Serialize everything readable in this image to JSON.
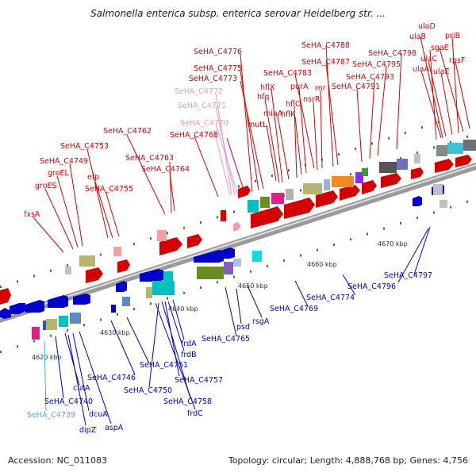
{
  "title": "Salmonella enterica subsp. enterica serovar Heidelberg str. ...",
  "accession": "Accession: NC_011083",
  "summary": "Topology: circular; Length: 4,888,768 bp; Genes: 4,756",
  "kbp_labels": [
    "4620 kbp",
    "4630 kbp",
    "4640 kbp",
    "4650 kbp",
    "4660 kbp",
    "4670 kbp"
  ],
  "colors": {
    "forward": "#d40000",
    "reverse": "#0000c8",
    "pseudo_pink": "#e89ac0",
    "cyan_label": "#3cb4d6",
    "backbone": "#9a9a9a"
  },
  "labels_top": [
    "SeHA_C4776",
    "SeHA_C4775",
    "SeHA_C4773",
    "SeHA_C4772",
    "SeHA_C4771",
    "SeHA_C4770",
    "SeHA_C4768",
    "SeHA_C4762",
    "SeHA_C4763",
    "SeHA_C4764",
    "SeHA_C4753",
    "SeHA_C4749",
    "groEL",
    "groES",
    "efp",
    "SeHA_C4755",
    "fxsA",
    "hflX",
    "hfq",
    "miaA",
    "mutL",
    "hflC",
    "hflK",
    "purA",
    "nsrR",
    "rnr",
    "SeHA_C4783",
    "SeHA_C4788",
    "SeHA_C4787",
    "SeHA_C4795",
    "SeHA_C4793",
    "SeHA_C4791",
    "SeHA_C4798",
    "ulaD",
    "ulaB",
    "ulaC",
    "ulaA",
    "priB",
    "sgaE",
    "rpsF",
    "ulaE"
  ],
  "labels_bottom": [
    "SeHA_C4797",
    "SeHA_C4796",
    "SeHA_C4774",
    "SeHA_C4769",
    "rsgA",
    "psd",
    "SeHA_C4765",
    "frdA",
    "frdB",
    "SeHA_C4751",
    "SeHA_C4746",
    "SeHA_C4757",
    "SeHA_C4750",
    "SeHA_C4758",
    "frdC",
    "cutA",
    "SeHA_C4740",
    "SeHA_C4739",
    "dcuA",
    "dipZ",
    "aspA"
  ]
}
